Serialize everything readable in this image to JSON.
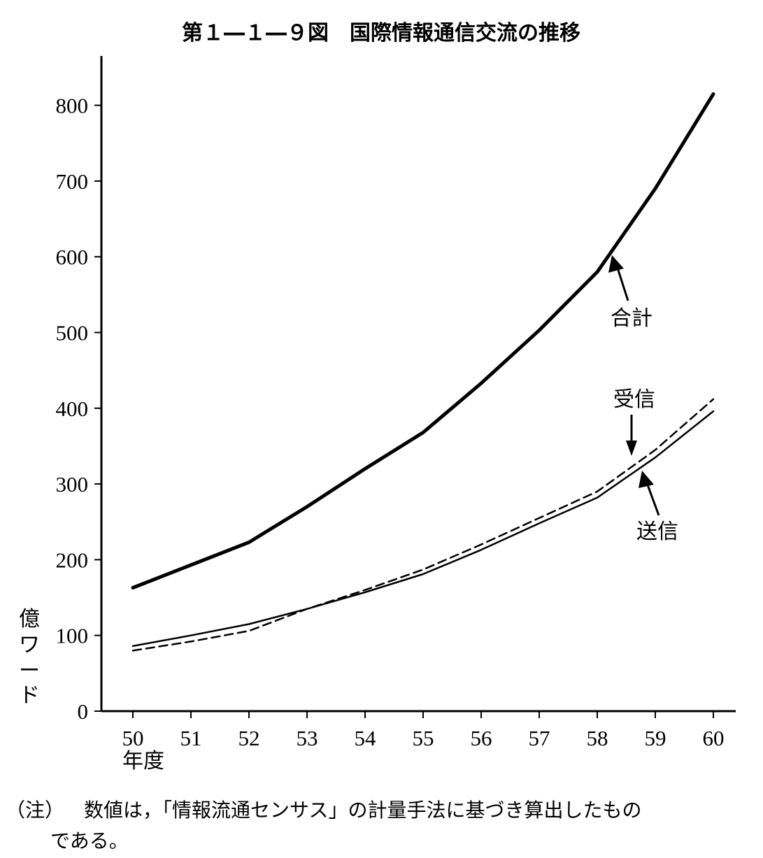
{
  "chart_data": {
    "type": "line",
    "title": "第１―１―９図　国際情報通信交流の推移",
    "ylabel": "億ワード",
    "xlabel": "年度",
    "ylim": [
      0,
      850
    ],
    "yticks": [
      0,
      100,
      200,
      300,
      400,
      500,
      600,
      700,
      800
    ],
    "categories": [
      "50",
      "51",
      "52",
      "53",
      "54",
      "55",
      "56",
      "57",
      "58",
      "59",
      "60"
    ],
    "series": [
      {
        "name": "合計",
        "style": "bold-solid",
        "values": [
          163,
          193,
          223,
          270,
          320,
          368,
          433,
          503,
          580,
          690,
          815
        ]
      },
      {
        "name": "受信",
        "style": "dashed",
        "values": [
          80,
          92,
          106,
          135,
          160,
          187,
          220,
          255,
          290,
          345,
          412
        ]
      },
      {
        "name": "送信",
        "style": "thin-solid",
        "values": [
          86,
          100,
          115,
          135,
          157,
          181,
          213,
          248,
          282,
          335,
          396
        ]
      }
    ],
    "annotations": {
      "total": "合計",
      "received": "受信",
      "sent": "送信"
    },
    "grid": false,
    "legend": "inline-labels"
  },
  "note": {
    "prefix": "（注）",
    "line1": "数値は，「情報流通センサス」の計量手法に基づき算出したもの",
    "line2": "である。"
  },
  "colors": {
    "ink": "#000000",
    "background": "#ffffff"
  }
}
